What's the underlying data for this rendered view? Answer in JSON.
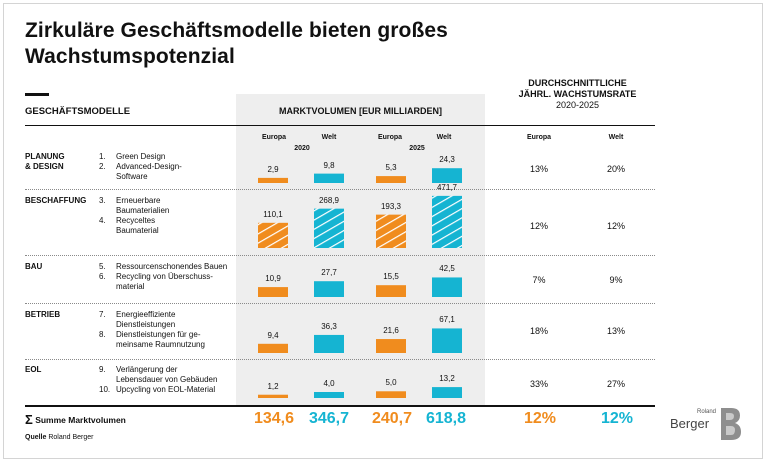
{
  "title": "Zirkuläre Geschäftsmodelle bieten großes Wachstumspotenzial",
  "headers": {
    "business_models": "GESCHÄFTSMODELLE",
    "market_volume": "MARKTVOLUMEN [EUR MILLIARDEN]",
    "growth_line1": "DURCHSCHNITTLICHE",
    "growth_line2": "JÄHRL. WACHSTUMSRATE",
    "growth_years": "2020-2025",
    "europa": "Europa",
    "welt": "Welt",
    "year2020": "2020",
    "year2025": "2025"
  },
  "sections": [
    {
      "name_line1": "PLANUNG",
      "name_line2": "& DESIGN",
      "items": [
        [
          "1.",
          "Green Design"
        ],
        [
          "2.",
          "Advanced-Design-"
        ],
        [
          "",
          "Software"
        ]
      ]
    },
    {
      "name_line1": "BESCHAFFUNG",
      "name_line2": "",
      "items": [
        [
          "3.",
          "Erneuerbare"
        ],
        [
          "",
          "Baumaterialien"
        ],
        [
          "4.",
          "Recyceltes"
        ],
        [
          "",
          "Baumaterial"
        ]
      ]
    },
    {
      "name_line1": "BAU",
      "name_line2": "",
      "items": [
        [
          "5.",
          "Ressourcenschonendes Bauen"
        ],
        [
          "6.",
          "Recycling von Überschuss-"
        ],
        [
          "",
          "material"
        ]
      ]
    },
    {
      "name_line1": "BETRIEB",
      "name_line2": "",
      "items": [
        [
          "7.",
          "Energieeffiziente"
        ],
        [
          "",
          "Dienstleistungen"
        ],
        [
          "8.",
          "Dienstleistungen für ge-"
        ],
        [
          "",
          "meinsame Raumnutzung"
        ]
      ]
    },
    {
      "name_line1": "EOL",
      "name_line2": "",
      "items": [
        [
          "9.",
          "Verlängerung der"
        ],
        [
          "",
          "Lebensdauer von Gebäuden"
        ],
        [
          "10.",
          "Upcycling von EOL-Material"
        ]
      ]
    }
  ],
  "chart_data": {
    "type": "bar",
    "categories": [
      "PLANUNG & DESIGN",
      "BESCHAFFUNG",
      "BAU",
      "BETRIEB",
      "EOL"
    ],
    "series": [
      {
        "name": "Europa 2020",
        "values": [
          2.9,
          110.1,
          10.9,
          9.4,
          1.2
        ],
        "labels": [
          "2,9",
          "110,1",
          "10,9",
          "9,4",
          "1,2"
        ],
        "color": "#f08c1e"
      },
      {
        "name": "Welt 2020",
        "values": [
          9.8,
          268.9,
          27.7,
          36.3,
          4.0
        ],
        "labels": [
          "9,8",
          "268,9",
          "27,7",
          "36,3",
          "4,0"
        ],
        "color": "#15b4d2"
      },
      {
        "name": "Europa 2025",
        "values": [
          5.3,
          193.3,
          15.5,
          21.6,
          5.0
        ],
        "labels": [
          "5,3",
          "193,3",
          "15,5",
          "21,6",
          "5,0"
        ],
        "color": "#f08c1e"
      },
      {
        "name": "Welt 2025",
        "values": [
          24.3,
          471.7,
          42.5,
          67.1,
          13.2
        ],
        "labels": [
          "24,3",
          "471,7",
          "42,5",
          "67,1",
          "13,2"
        ],
        "color": "#15b4d2"
      }
    ],
    "growth_rates": {
      "europa": [
        "13%",
        "12%",
        "7%",
        "18%",
        "33%"
      ],
      "welt": [
        "20%",
        "12%",
        "9%",
        "13%",
        "27%"
      ]
    },
    "totals": {
      "label": "Summe Marktvolumen",
      "values": [
        "134,6",
        "346,7",
        "240,7",
        "618,8"
      ],
      "growth": [
        "12%",
        "12%"
      ]
    }
  },
  "source_label": "Quelle",
  "source_value": "Roland Berger",
  "logo": {
    "line1": "Roland",
    "line2": "Berger"
  },
  "colors": {
    "orange": "#f08c1e",
    "cyan": "#15b4d2",
    "panel": "#eeeeee"
  }
}
